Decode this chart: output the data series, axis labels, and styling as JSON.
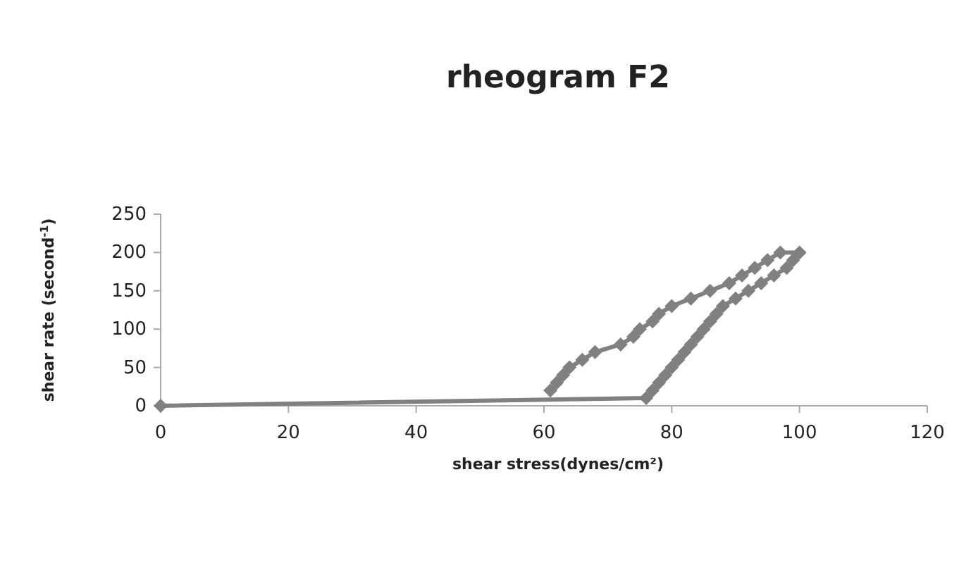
{
  "chart_data": {
    "type": "line",
    "title": "rheogram F2",
    "xlabel": "shear stress(dynes/cm²)",
    "ylabel": "shear rate (second$^{-1}$)",
    "series": [
      {
        "color": "#808080",
        "x": [
          0,
          76,
          77,
          78,
          79,
          80,
          81,
          82,
          83,
          84,
          85,
          86,
          87,
          88,
          90,
          92,
          94,
          96,
          98,
          99,
          100,
          97,
          95,
          93,
          91,
          89,
          86,
          83,
          80,
          78,
          77,
          75,
          74,
          72,
          68,
          66,
          64,
          63,
          62,
          61
        ],
        "values": [
          0,
          10,
          20,
          30,
          40,
          50,
          60,
          70,
          80,
          90,
          100,
          110,
          120,
          130,
          140,
          150,
          160,
          170,
          180,
          190,
          200,
          200,
          190,
          180,
          170,
          160,
          150,
          140,
          130,
          120,
          110,
          100,
          90,
          80,
          70,
          60,
          50,
          40,
          30,
          20
        ]
      }
    ],
    "xlim": [
      0,
      120
    ],
    "xticks": [
      0,
      20,
      40,
      60,
      80,
      100,
      120
    ],
    "ylim": [
      0,
      250
    ],
    "yticks": [
      0,
      50,
      100,
      150,
      200,
      250
    ],
    "marker": "diamond",
    "line_style": "solid",
    "grid": false
  }
}
